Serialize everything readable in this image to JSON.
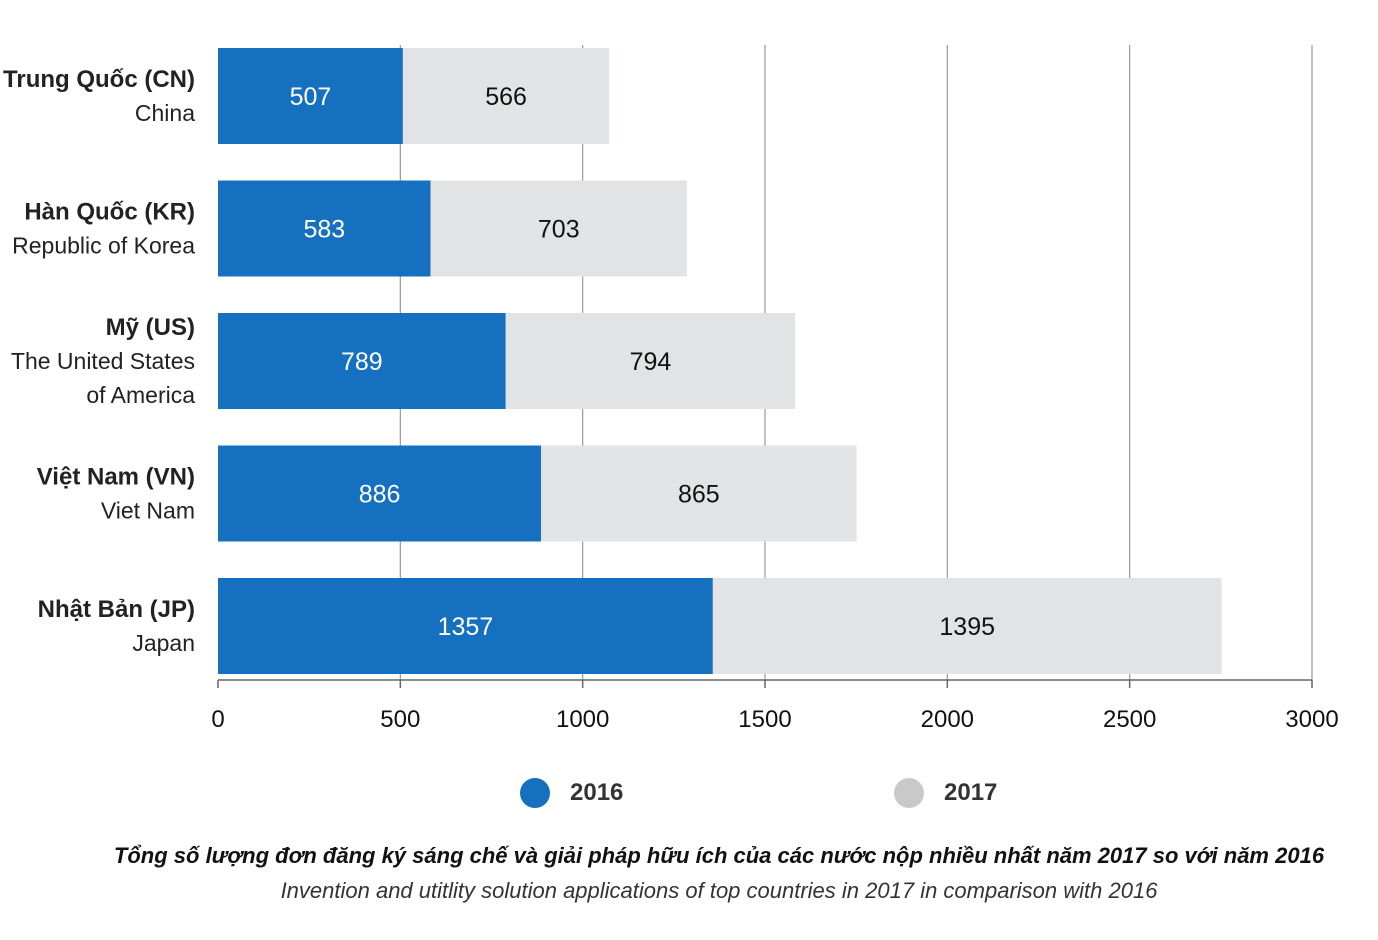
{
  "chart_data": {
    "type": "bar",
    "orientation": "horizontal",
    "stacked": true,
    "categories": [
      {
        "name": "Trung Quốc (CN)",
        "subtitle_lines": [
          "China"
        ]
      },
      {
        "name": "Hàn Quốc (KR)",
        "subtitle_lines": [
          "Republic of Korea"
        ]
      },
      {
        "name": "Mỹ (US)",
        "subtitle_lines": [
          "The United States",
          "of America"
        ]
      },
      {
        "name": "Việt Nam (VN)",
        "subtitle_lines": [
          "Viet Nam"
        ]
      },
      {
        "name": "Nhật Bản (JP)",
        "subtitle_lines": [
          "Japan"
        ]
      }
    ],
    "series": [
      {
        "name": "2016",
        "color": "#1570c0",
        "label_color": "#ffffff",
        "values": [
          507,
          583,
          789,
          886,
          1357
        ]
      },
      {
        "name": "2017",
        "color": "#e2e3e4",
        "label_color": "#111111",
        "values": [
          566,
          703,
          794,
          865,
          1395
        ]
      }
    ],
    "xlim": [
      0,
      3000
    ],
    "xticks": [
      0,
      500,
      1000,
      1500,
      2000,
      2500,
      3000
    ],
    "grid": true,
    "grid_color": "#999999",
    "legend_position": "bottom"
  },
  "caption": {
    "vi": "Tổng số lượng đơn đăng ký sáng chế và giải pháp hữu ích của các nước nộp nhiều nhất năm 2017 so với năm 2016",
    "en": "Invention and utitlity solution applications of top countries in 2017 in comparison with 2016"
  }
}
